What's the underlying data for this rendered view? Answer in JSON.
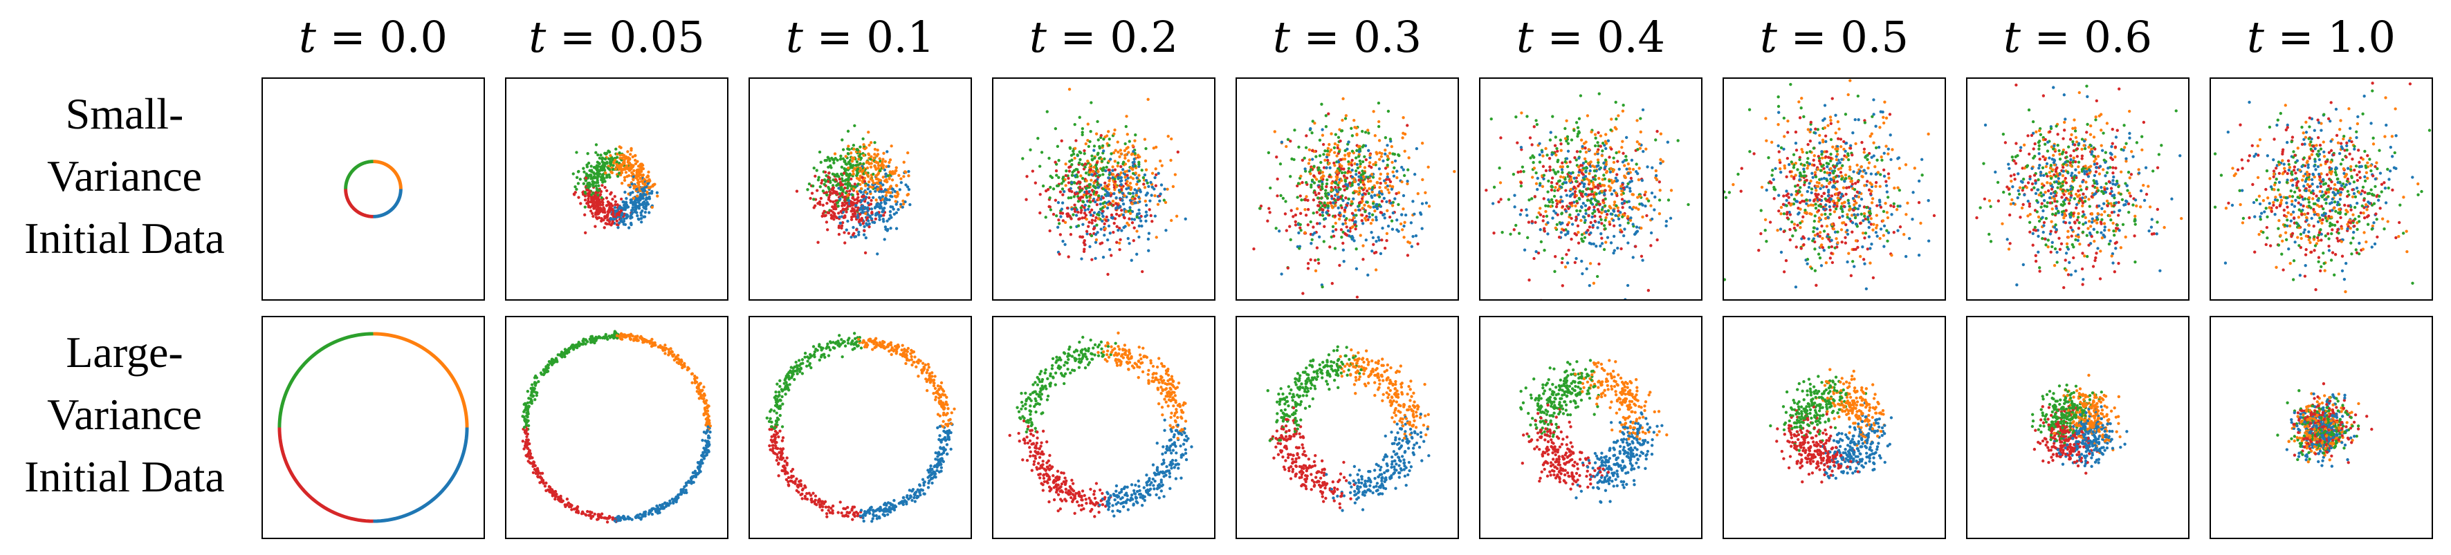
{
  "column_titles": [
    {
      "var": "t",
      "eq": " = ",
      "val": "0.0"
    },
    {
      "var": "t",
      "eq": " = ",
      "val": "0.05"
    },
    {
      "var": "t",
      "eq": " = ",
      "val": "0.1"
    },
    {
      "var": "t",
      "eq": " = ",
      "val": "0.2"
    },
    {
      "var": "t",
      "eq": " = ",
      "val": "0.3"
    },
    {
      "var": "t",
      "eq": " = ",
      "val": "0.4"
    },
    {
      "var": "t",
      "eq": " = ",
      "val": "0.5"
    },
    {
      "var": "t",
      "eq": " = ",
      "val": "0.6"
    },
    {
      "var": "t",
      "eq": " = ",
      "val": "1.0"
    }
  ],
  "row_labels": [
    {
      "line1": "Small-",
      "line2": "Variance",
      "line3": "Initial Data"
    },
    {
      "line1": "Large-",
      "line2": "Variance",
      "line3": "Initial Data"
    }
  ],
  "chart_data": {
    "type": "scatter",
    "title": "",
    "xlabel": "",
    "ylabel": "",
    "grid": false,
    "legend": "none",
    "t_values": [
      0.0,
      0.05,
      0.1,
      0.2,
      0.3,
      0.4,
      0.5,
      0.6,
      1.0
    ],
    "quadrant_colors": {
      "upper-left": "#2ca02c",
      "upper-right": "#ff7f0e",
      "lower-left": "#d62728",
      "lower-right": "#1f77b4"
    },
    "rows": [
      {
        "name": "Small-Variance Initial Data",
        "ring_radius": [
          0.25,
          0.24,
          0.22,
          0.19,
          0.16,
          0.13,
          0.1,
          0.08,
          0.0
        ],
        "spread": [
          0.0,
          0.06,
          0.12,
          0.22,
          0.27,
          0.3,
          0.32,
          0.33,
          0.34
        ]
      },
      {
        "name": "Large-Variance Initial Data",
        "ring_radius": [
          0.85,
          0.83,
          0.78,
          0.68,
          0.56,
          0.42,
          0.3,
          0.18,
          0.0
        ],
        "spread": [
          0.0,
          0.015,
          0.03,
          0.06,
          0.08,
          0.1,
          0.1,
          0.1,
          0.12
        ]
      }
    ],
    "points_per_panel": 800,
    "axis_range": [
      -1,
      1
    ]
  }
}
